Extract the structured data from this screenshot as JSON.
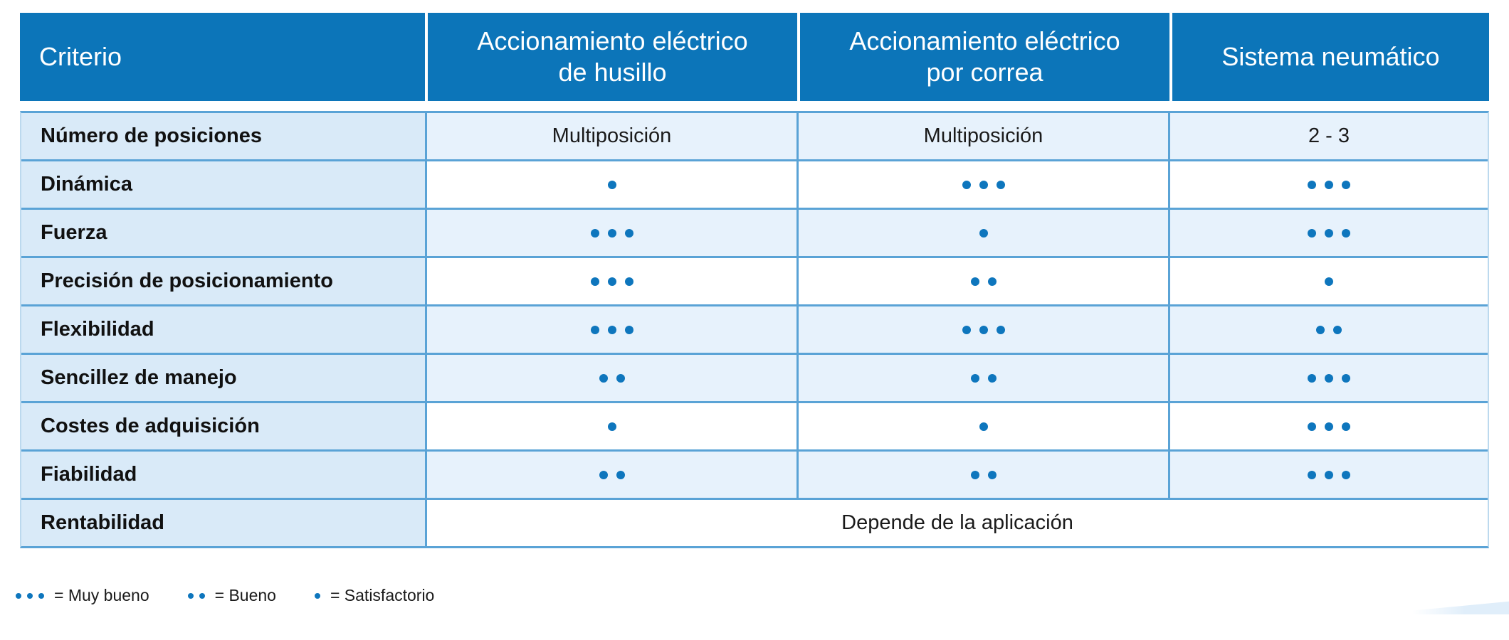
{
  "table": {
    "header": {
      "criterio": "Criterio",
      "columns": [
        "Accionamiento eléctrico\nde husillo",
        "Accionamiento eléctrico\npor correa",
        "Sistema neumático"
      ]
    },
    "rows": [
      {
        "label": "Número de posiciones",
        "shade": "light",
        "cells": [
          "Multiposición",
          "Multiposición",
          "2 - 3"
        ]
      },
      {
        "label": "Dinámica",
        "shade": "white",
        "cells": [
          1,
          3,
          3
        ]
      },
      {
        "label": "Fuerza",
        "shade": "light",
        "cells": [
          3,
          1,
          3
        ]
      },
      {
        "label": "Precisión de posicionamiento",
        "shade": "white",
        "cells": [
          3,
          2,
          1
        ]
      },
      {
        "label": "Flexibilidad",
        "shade": "light",
        "cells": [
          3,
          3,
          2
        ]
      },
      {
        "label": "Sencillez de manejo",
        "shade": "light",
        "cells": [
          2,
          2,
          3
        ]
      },
      {
        "label": "Costes de adquisición",
        "shade": "white",
        "cells": [
          1,
          1,
          3
        ]
      },
      {
        "label": "Fiabilidad",
        "shade": "light",
        "cells": [
          2,
          2,
          3
        ]
      },
      {
        "label": "Rentabilidad",
        "shade": "white",
        "merged": "Depende de la aplicación"
      }
    ]
  },
  "legend": {
    "items": [
      {
        "dots": 3,
        "label": "= Muy bueno"
      },
      {
        "dots": 2,
        "label": "= Bueno"
      },
      {
        "dots": 1,
        "label": "= Satisfactorio"
      }
    ]
  },
  "colors": {
    "header_blue": "#0c75b9",
    "header_text": "#ffffff",
    "row_separator": "#5aa3d6",
    "col1_bg": "#d9eaf8",
    "light_cell_bg": "#e7f2fc",
    "white_cell_bg": "#ffffff",
    "dot_blue": "#0e76bd",
    "label_text": "#111111",
    "body_text": "#1a1a1a",
    "wedge_blue": "#e0eefa"
  }
}
